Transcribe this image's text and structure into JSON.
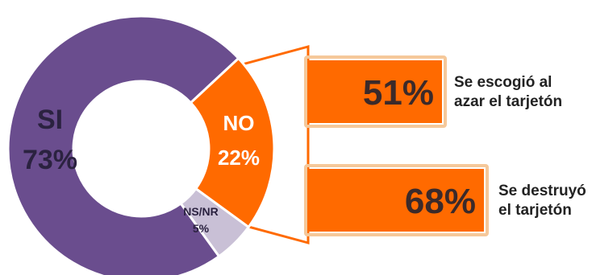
{
  "chart_data": [
    {
      "type": "pie",
      "categories": [
        "SI",
        "NO",
        "NS/NR"
      ],
      "values": [
        73,
        22,
        5
      ],
      "value_labels": [
        "73%",
        "22%",
        "5%"
      ],
      "colors": [
        "#6a4d8e",
        "#ff6a00",
        "#c9c0d6"
      ]
    },
    {
      "type": "bar",
      "orientation": "horizontal",
      "categories": [
        [
          "Se escogió al",
          "azar el tarjetón"
        ],
        [
          "Se destruyó",
          "el tarjetón"
        ]
      ],
      "values": [
        51,
        68
      ],
      "value_labels": [
        "51%",
        "68%"
      ],
      "bar_color": "#ff6a00",
      "frame_color": "#f5c89a"
    }
  ],
  "colors": {
    "callout_fill": "#ffffff",
    "callout_stroke": "#ff6a00",
    "ring_stroke": "#ffffff"
  }
}
